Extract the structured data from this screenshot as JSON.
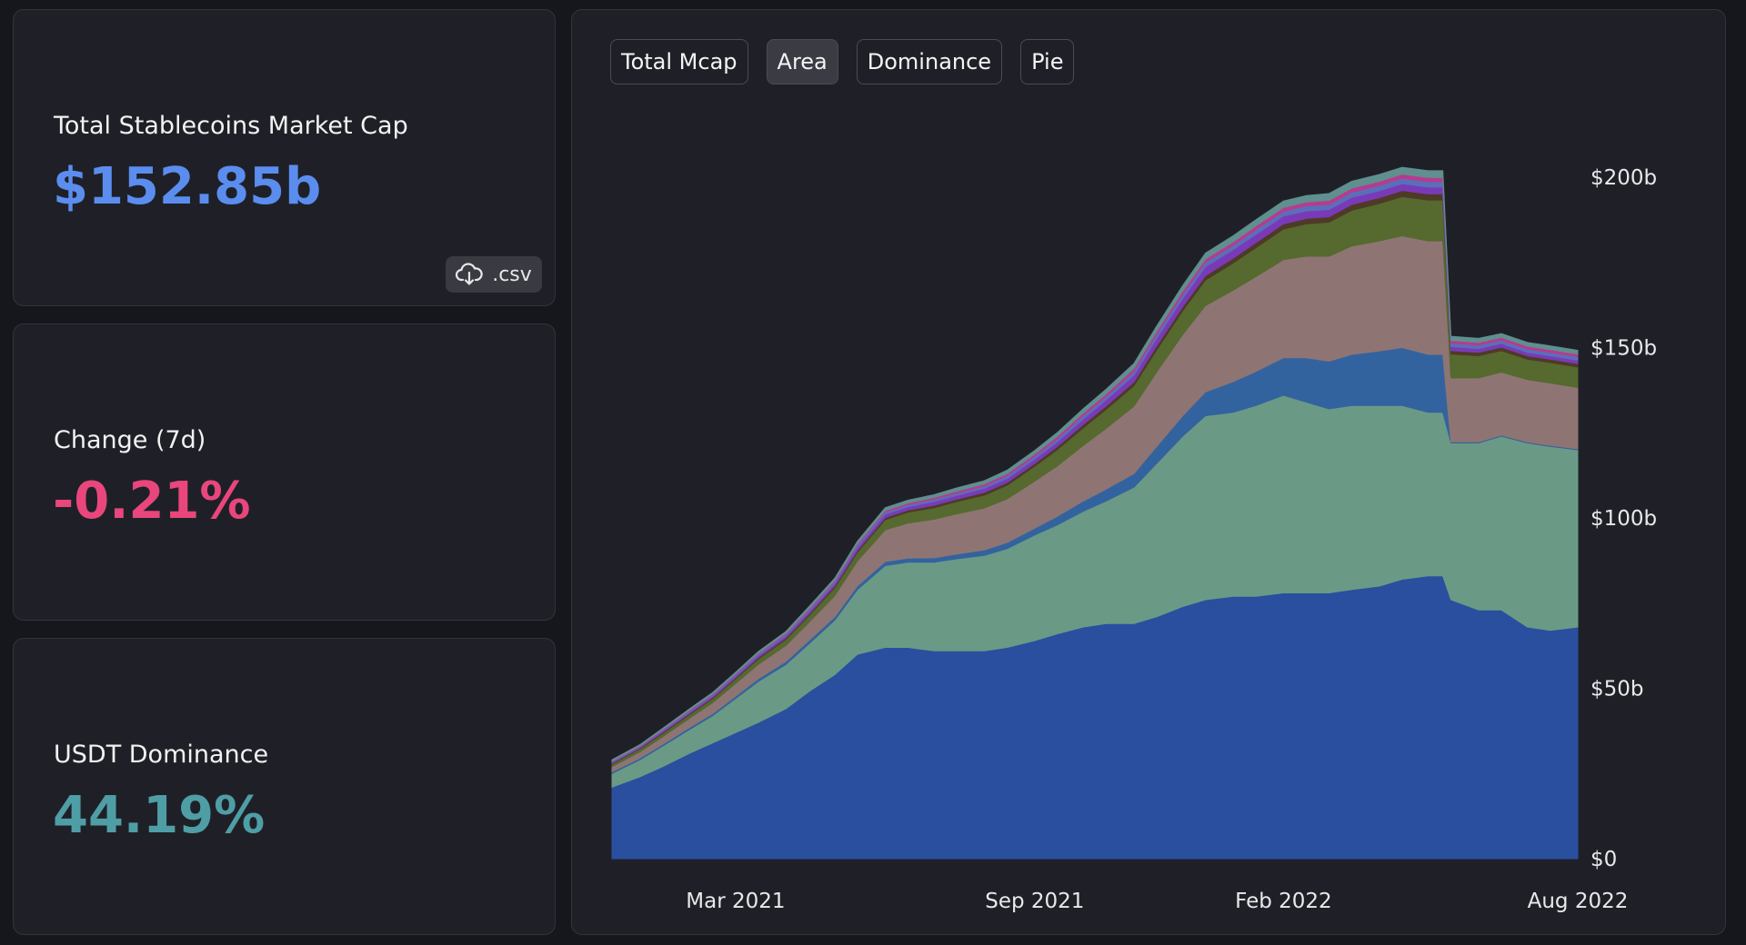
{
  "stats": {
    "market_cap": {
      "label": "Total Stablecoins Market Cap",
      "value": "$152.85b",
      "color": "#5b8def"
    },
    "change": {
      "label": "Change (7d)",
      "value": "-0.21%",
      "color": "#e8467c"
    },
    "dominance": {
      "label": "USDT Dominance",
      "value": "44.19%",
      "color": "#4f9ea6"
    },
    "csv_button": {
      "label": ".csv",
      "icon": "cloud-download-icon"
    }
  },
  "tabs": [
    {
      "label": "Total Mcap",
      "active": false
    },
    {
      "label": "Area",
      "active": true
    },
    {
      "label": "Dominance",
      "active": false
    },
    {
      "label": "Pie",
      "active": false
    }
  ],
  "chart_data": {
    "type": "area",
    "stacked": true,
    "x": [
      "2020-12-15",
      "2021-01-01",
      "2021-01-15",
      "2021-02-01",
      "2021-02-15",
      "2021-03-01",
      "2021-03-15",
      "2021-04-01",
      "2021-04-15",
      "2021-05-01",
      "2021-05-15",
      "2021-06-01",
      "2021-06-15",
      "2021-07-01",
      "2021-07-15",
      "2021-08-01",
      "2021-08-15",
      "2021-09-01",
      "2021-09-15",
      "2021-10-01",
      "2021-10-15",
      "2021-11-01",
      "2021-11-15",
      "2021-12-01",
      "2021-12-15",
      "2022-01-01",
      "2022-01-15",
      "2022-02-01",
      "2022-02-15",
      "2022-03-01",
      "2022-03-15",
      "2022-04-01",
      "2022-04-15",
      "2022-05-01",
      "2022-05-10",
      "2022-05-15",
      "2022-06-01",
      "2022-06-15",
      "2022-07-01",
      "2022-07-15",
      "2022-08-01"
    ],
    "series": [
      {
        "color": "#2a4f9f",
        "values": [
          21,
          24,
          27,
          31,
          34,
          37,
          40,
          44,
          49,
          54,
          60,
          62,
          62,
          61,
          61,
          61,
          62,
          64,
          66,
          68,
          69,
          69,
          71,
          74,
          76,
          77,
          77,
          78,
          78,
          78,
          79,
          80,
          82,
          83,
          83,
          76,
          73,
          73,
          68,
          67,
          68
        ]
      },
      {
        "color": "#6a9a86",
        "values": [
          4,
          5,
          6,
          7,
          8,
          10,
          12,
          13,
          14,
          16,
          19,
          24,
          25,
          26,
          27,
          28,
          29,
          31,
          32,
          34,
          36,
          40,
          45,
          50,
          54,
          54,
          56,
          58,
          56,
          54,
          54,
          53,
          51,
          48,
          48,
          46,
          49,
          51,
          54,
          54,
          52
        ]
      },
      {
        "color": "#33639e",
        "values": [
          0.5,
          0.5,
          0.5,
          0.6,
          0.6,
          0.7,
          0.8,
          0.9,
          1,
          1,
          1.1,
          1.2,
          1.2,
          1.3,
          1.4,
          1.6,
          1.8,
          2,
          2.5,
          3,
          3.5,
          4,
          5,
          6,
          7,
          9,
          10,
          11,
          13,
          14,
          15,
          16,
          17,
          17,
          17,
          0.3,
          0.3,
          0.3,
          0.3,
          0.3,
          0.3
        ]
      },
      {
        "color": "#8e7573",
        "values": [
          1.5,
          1.8,
          2.2,
          2.7,
          3.2,
          3.7,
          4.2,
          4.7,
          5.3,
          6.2,
          7.3,
          9.3,
          10.3,
          11.3,
          11.8,
          12.3,
          12.8,
          13.8,
          14.8,
          16.3,
          17.8,
          19.8,
          21.8,
          23.8,
          25.3,
          26.8,
          27.8,
          28.8,
          29.8,
          30.8,
          31.8,
          32.3,
          32.8,
          33.3,
          33.3,
          18.8,
          18.8,
          18.5,
          18.3,
          18.3,
          18
        ]
      },
      {
        "color": "#56692f",
        "values": [
          0.8,
          0.9,
          1,
          1.1,
          1.2,
          1.4,
          1.6,
          1.8,
          2,
          2.3,
          2.6,
          3,
          3.2,
          3.4,
          3.6,
          3.8,
          4,
          4.4,
          4.8,
          5.2,
          5.6,
          6,
          6.5,
          7,
          7.5,
          8,
          8.5,
          9,
          9.5,
          10,
          10.5,
          11,
          11.5,
          12,
          12,
          7,
          6.5,
          6.3,
          6,
          6,
          6
        ]
      },
      {
        "color": "#4e3a26",
        "values": [
          0.2,
          0.2,
          0.3,
          0.3,
          0.3,
          0.3,
          0.4,
          0.4,
          0.4,
          0.5,
          0.5,
          0.6,
          0.6,
          0.7,
          0.7,
          0.8,
          0.8,
          0.8,
          0.9,
          1,
          1,
          1.1,
          1.2,
          1.2,
          1.3,
          1.4,
          1.5,
          1.5,
          1.6,
          1.6,
          1.7,
          1.7,
          1.8,
          1.8,
          1.8,
          1,
          1,
          1,
          1,
          1,
          1
        ]
      },
      {
        "color": "#7a3ab8",
        "values": [
          0.3,
          0.3,
          0.4,
          0.4,
          0.5,
          0.5,
          0.6,
          0.6,
          0.7,
          0.8,
          0.9,
          1,
          1,
          1.1,
          1.1,
          1.2,
          1.2,
          1.3,
          1.4,
          1.6,
          1.8,
          2,
          2.2,
          2.4,
          2.6,
          2.5,
          2.4,
          2.3,
          2.2,
          2.1,
          2.1,
          2,
          2,
          2,
          2,
          1.2,
          1.1,
          1.1,
          1,
          1,
          1
        ]
      },
      {
        "color": "#5a6fb8",
        "values": [
          0.2,
          0.2,
          0.3,
          0.3,
          0.3,
          0.4,
          0.4,
          0.4,
          0.5,
          0.5,
          0.6,
          0.6,
          0.6,
          0.7,
          0.7,
          0.7,
          0.8,
          0.8,
          0.9,
          1,
          1,
          1.1,
          1.2,
          1.2,
          1.3,
          1.3,
          1.4,
          1.4,
          1.5,
          1.5,
          1.5,
          1.6,
          1.6,
          1.6,
          1.6,
          1,
          1,
          1,
          1,
          1,
          1
        ]
      },
      {
        "color": "#b83a8e",
        "values": [
          0.2,
          0.2,
          0.2,
          0.3,
          0.3,
          0.3,
          0.3,
          0.4,
          0.4,
          0.4,
          0.5,
          0.5,
          0.5,
          0.5,
          0.6,
          0.6,
          0.6,
          0.7,
          0.7,
          0.8,
          0.8,
          0.9,
          0.9,
          1,
          1,
          1,
          1.1,
          1.1,
          1.1,
          1.2,
          1.2,
          1.2,
          1.2,
          1.2,
          1.2,
          0.8,
          0.8,
          0.8,
          0.8,
          0.8,
          0.8
        ]
      },
      {
        "color": "#5f8f8f",
        "values": [
          0.3,
          0.3,
          0.3,
          0.4,
          0.4,
          0.4,
          0.5,
          0.5,
          0.6,
          0.6,
          0.7,
          0.8,
          0.8,
          0.8,
          0.9,
          0.9,
          1,
          1,
          1.1,
          1.2,
          1.3,
          1.4,
          1.5,
          1.6,
          1.7,
          1.8,
          1.8,
          1.9,
          1.9,
          2,
          2,
          2,
          2,
          2,
          2,
          1.2,
          1.2,
          1.1,
          1.1,
          1.1,
          1.1
        ]
      }
    ],
    "ylim": [
      0,
      200
    ],
    "y_ticks": [
      "$0",
      "$50b",
      "$100b",
      "$150b",
      "$200b"
    ],
    "x_ticks": [
      "Mar 2021",
      "Sep 2021",
      "Feb 2022",
      "Aug 2022"
    ],
    "x_tick_dates": [
      "2021-03-01",
      "2021-09-01",
      "2022-02-01",
      "2022-08-01"
    ],
    "xlim": [
      "2020-12-15",
      "2022-08-01"
    ],
    "grid": false,
    "legend": "none"
  }
}
